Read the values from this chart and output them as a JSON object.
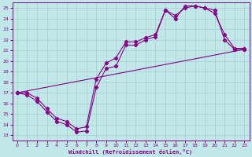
{
  "xlabel": "Windchill (Refroidissement éolien,°C)",
  "bg_color": "#c0e8e8",
  "grid_color": "#aad4d4",
  "line_color": "#880088",
  "xlim": [
    -0.5,
    23.5
  ],
  "ylim": [
    12.5,
    25.5
  ],
  "xticks": [
    0,
    1,
    2,
    3,
    4,
    5,
    6,
    7,
    8,
    9,
    10,
    11,
    12,
    13,
    14,
    15,
    16,
    17,
    18,
    19,
    20,
    21,
    22,
    23
  ],
  "yticks": [
    13,
    14,
    15,
    16,
    17,
    18,
    19,
    20,
    21,
    22,
    23,
    24,
    25
  ],
  "line1_x": [
    0,
    1,
    2,
    3,
    4,
    5,
    6,
    7,
    8,
    9,
    10,
    11,
    12,
    13,
    14,
    15,
    16,
    17,
    18,
    19,
    20,
    21,
    22,
    23
  ],
  "line1_y": [
    17,
    16.8,
    16.2,
    15.2,
    14.3,
    14.0,
    13.3,
    13.4,
    17.5,
    19.3,
    19.5,
    21.5,
    21.5,
    22.0,
    22.3,
    24.8,
    24.3,
    25.0,
    25.2,
    25.0,
    24.8,
    22.0,
    21.1,
    21.1
  ],
  "line2_x": [
    0,
    1,
    2,
    3,
    4,
    5,
    6,
    7,
    8,
    9,
    10,
    11,
    12,
    13,
    14,
    15,
    16,
    17,
    18,
    19,
    20,
    21,
    22,
    23
  ],
  "line2_y": [
    17,
    17,
    16.5,
    15.5,
    14.6,
    14.3,
    13.6,
    13.8,
    18.3,
    19.8,
    20.3,
    21.8,
    21.8,
    22.2,
    22.5,
    24.8,
    24.0,
    25.2,
    25.2,
    25.0,
    24.5,
    22.5,
    21.2,
    21.2
  ],
  "line3_x": [
    0,
    23
  ],
  "line3_y": [
    17,
    21.1
  ]
}
